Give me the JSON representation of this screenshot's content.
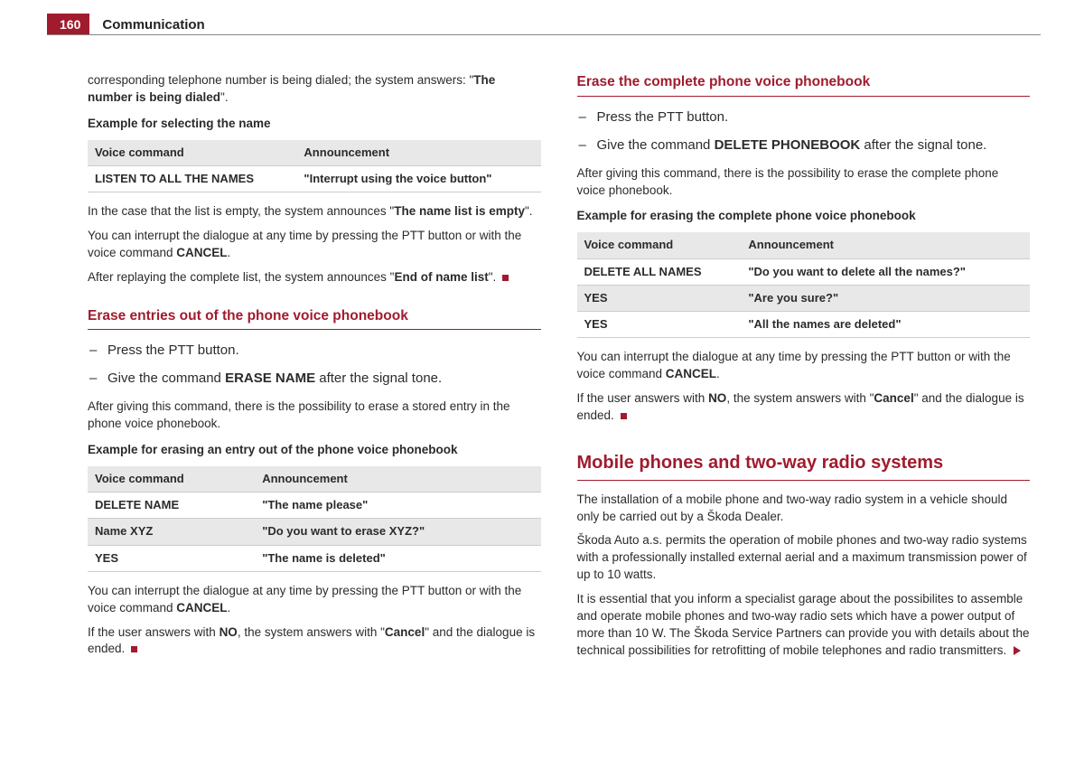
{
  "header": {
    "page_number": "160",
    "section": "Communication"
  },
  "colors": {
    "brand": "#a11b2e",
    "text": "#2b2b2b",
    "shade": "#e8e8e8",
    "rule": "#cccccc"
  },
  "left": {
    "intro_pre": "corresponding telephone number is being dialed; the system answers: \"",
    "intro_bold": "The number is being dialed",
    "intro_post": "\".",
    "subhead1": "Example for selecting the name",
    "table1": {
      "headers": [
        "Voice command",
        "Announcement"
      ],
      "rows": [
        [
          "LISTEN TO ALL THE NAMES",
          "\"Interrupt using the voice button\""
        ]
      ]
    },
    "p_empty_pre": "In the case that the list is empty, the system announces \"",
    "p_empty_bold": "The name list is empty",
    "p_empty_post": "\".",
    "p_interrupt_pre": "You can interrupt the dialogue at any time by pressing the PTT button or with the voice command ",
    "p_interrupt_bold": "CANCEL",
    "p_interrupt_post": ".",
    "p_endlist_pre": "After replaying the complete list, the system announces \"",
    "p_endlist_bold": "End of name list",
    "p_endlist_post": "\". ",
    "heading1": "Erase entries out of the phone voice phonebook",
    "bullets1": {
      "b1": "Press the PTT button.",
      "b2_pre": "Give the command ",
      "b2_bold": "ERASE NAME",
      "b2_post": " after the signal tone."
    },
    "p_after1": "After giving this command, there is the possibility to erase a stored entry in the phone voice phonebook.",
    "subhead2": "Example for erasing an entry out of the phone voice phonebook",
    "table2": {
      "headers": [
        "Voice command",
        "Announcement"
      ],
      "rows": [
        [
          "DELETE NAME",
          "\"The name please\""
        ],
        [
          "Name XYZ",
          "\"Do you want to erase XYZ?\""
        ],
        [
          "YES",
          "\"The name is deleted\""
        ]
      ]
    },
    "p_interrupt2_pre": "You can interrupt the dialogue at any time by pressing the PTT button or with the voice command ",
    "p_interrupt2_bold": "CANCEL",
    "p_interrupt2_post": ".",
    "p_no_pre": "If the user answers with ",
    "p_no_bold1": "NO",
    "p_no_mid": ", the system answers with \"",
    "p_no_bold2": "Cancel",
    "p_no_post": "\" and the dialogue is ended. "
  },
  "right": {
    "heading1": "Erase the complete phone voice phonebook",
    "bullets1": {
      "b1": "Press the PTT button.",
      "b2_pre": "Give the command ",
      "b2_bold": "DELETE PHONEBOOK",
      "b2_post": " after the signal tone."
    },
    "p_after1": "After giving this command, there is the possibility to erase the complete phone voice phonebook.",
    "subhead1": "Example for erasing the complete phone voice phonebook",
    "table1": {
      "headers": [
        "Voice command",
        "Announcement"
      ],
      "rows": [
        [
          "DELETE ALL NAMES",
          "\"Do you want to delete all the names?\""
        ],
        [
          "YES",
          "\"Are you sure?\""
        ],
        [
          "YES",
          "\"All the names are deleted\""
        ]
      ]
    },
    "p_interrupt_pre": "You can interrupt the dialogue at any time by pressing the PTT button or with the voice command ",
    "p_interrupt_bold": "CANCEL",
    "p_interrupt_post": ".",
    "p_no_pre": "If the user answers with ",
    "p_no_bold1": "NO",
    "p_no_mid": ", the system answers with \"",
    "p_no_bold2": "Cancel",
    "p_no_post": "\" and the dialogue is ended. ",
    "big_heading": "Mobile phones and two-way radio systems",
    "p1": "The installation of a mobile phone and two-way radio system in a vehicle should only be carried out by a Škoda Dealer.",
    "p2": "Škoda Auto a.s. permits the operation of mobile phones and two-way radio systems with a professionally installed external aerial and a maximum transmission power of up to 10 watts.",
    "p3": "It is essential that you inform a specialist garage about the possibilites to assemble and operate mobile phones and two-way radio sets which have a power output of more than 10 W. The Škoda Service Partners can provide you with details about the technical possibilities for retrofitting of mobile telephones and radio transmitters. "
  }
}
